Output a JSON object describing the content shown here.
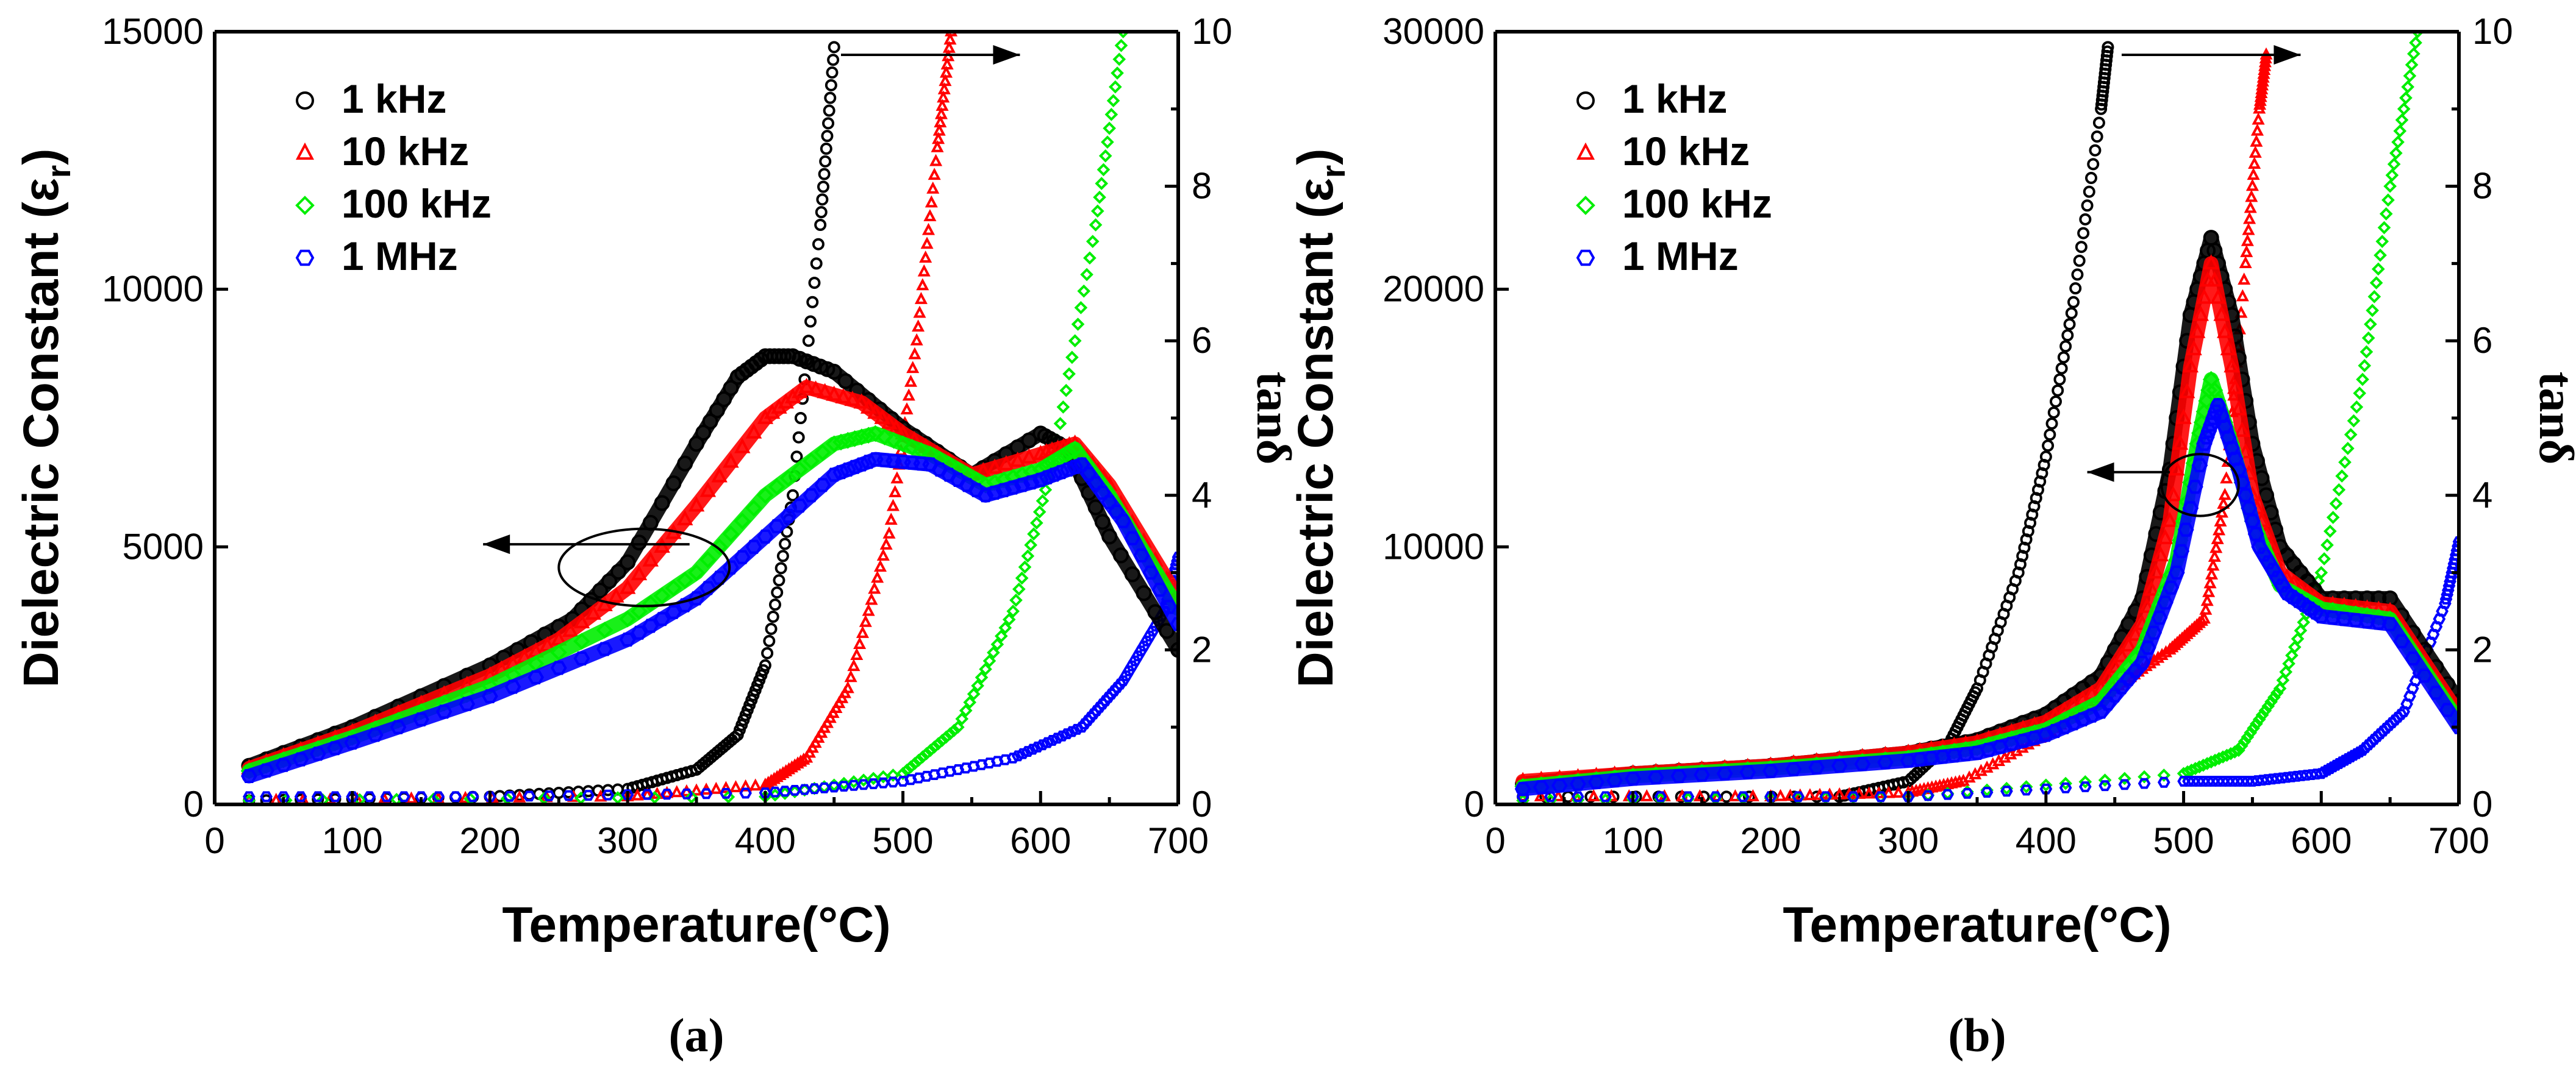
{
  "figure": {
    "x_axis_title": "Temperature(°C)",
    "left_axis_title": "Dielectric Constant (ε",
    "left_axis_sub": "r",
    "left_axis_close": ")",
    "right_axis_title": "tanδ"
  },
  "colors": {
    "1 kHz": "#000000",
    "10 kHz": "#ff0000",
    "100 kHz": "#00ee00",
    "1 MHz": "#0000ff"
  },
  "chart_data": [
    {
      "type": "scatter",
      "panel_label": "(a)",
      "xlim": [
        0,
        700
      ],
      "x_ticks": [
        0,
        100,
        200,
        300,
        400,
        500,
        600,
        700
      ],
      "ylim_left": [
        0,
        15000
      ],
      "y_ticks_left": [
        0,
        5000,
        10000,
        15000
      ],
      "ylim_right": [
        0,
        10
      ],
      "y_ticks_right": [
        0,
        2,
        4,
        6,
        8,
        10
      ],
      "legend": [
        {
          "label": "1 kHz",
          "marker": "circle"
        },
        {
          "label": "10 kHz",
          "marker": "triangle"
        },
        {
          "label": "100 kHz",
          "marker": "diamond"
        },
        {
          "label": "1 MHz",
          "marker": "hexagon"
        }
      ],
      "dielectric_series": [
        {
          "name": "1 kHz",
          "x": [
            25,
            100,
            200,
            260,
            300,
            350,
            380,
            400,
            420,
            450,
            500,
            550,
            600,
            620,
            650,
            700
          ],
          "y": [
            750,
            1500,
            2700,
            3600,
            4700,
            7000,
            8300,
            8700,
            8700,
            8400,
            7300,
            6400,
            7200,
            6900,
            5200,
            3000
          ]
        },
        {
          "name": "10 kHz",
          "x": [
            25,
            100,
            200,
            250,
            300,
            350,
            400,
            430,
            470,
            500,
            550,
            600,
            625,
            650,
            700
          ],
          "y": [
            700,
            1400,
            2500,
            3200,
            4200,
            5800,
            7500,
            8100,
            7800,
            7200,
            6400,
            6800,
            7000,
            6200,
            4000
          ]
        },
        {
          "name": "100 kHz",
          "x": [
            25,
            100,
            200,
            300,
            350,
            400,
            450,
            480,
            520,
            560,
            600,
            625,
            650,
            700
          ],
          "y": [
            650,
            1300,
            2300,
            3600,
            4500,
            6000,
            7000,
            7200,
            6800,
            6200,
            6500,
            6900,
            6000,
            3800
          ]
        },
        {
          "name": "1 MHz",
          "x": [
            25,
            100,
            200,
            300,
            350,
            400,
            450,
            480,
            520,
            560,
            600,
            630,
            660,
            700
          ],
          "y": [
            550,
            1200,
            2100,
            3200,
            4000,
            5200,
            6400,
            6700,
            6600,
            6000,
            6300,
            6600,
            5500,
            3500
          ]
        }
      ],
      "loss_series": [
        {
          "name": "1 kHz",
          "x": [
            25,
            200,
            300,
            350,
            380,
            400,
            420,
            440,
            450
          ],
          "y": [
            0.05,
            0.1,
            0.2,
            0.45,
            0.9,
            1.8,
            4.0,
            7.5,
            9.8
          ]
        },
        {
          "name": "10 kHz",
          "x": [
            25,
            300,
            400,
            430,
            460,
            490,
            510,
            525,
            535
          ],
          "y": [
            0.05,
            0.1,
            0.25,
            0.6,
            1.5,
            3.5,
            6.0,
            8.5,
            10
          ]
        },
        {
          "name": "100 kHz",
          "x": [
            25,
            400,
            500,
            540,
            580,
            610,
            640,
            660
          ],
          "y": [
            0.05,
            0.1,
            0.4,
            1.0,
            2.5,
            4.5,
            7.5,
            10
          ]
        },
        {
          "name": "1 MHz",
          "x": [
            25,
            200,
            400,
            500,
            580,
            630,
            660,
            690,
            700
          ],
          "y": [
            0.1,
            0.1,
            0.15,
            0.3,
            0.6,
            1.0,
            1.6,
            2.5,
            3.2
          ]
        }
      ],
      "annotations": [
        {
          "type": "arrow",
          "axis": "left",
          "direction": "left",
          "from": [
            345,
            5050
          ],
          "to": [
            195,
            5050
          ]
        },
        {
          "type": "ellipse",
          "cx": 312,
          "cy": 4600,
          "rx": 62,
          "ry": 750
        },
        {
          "type": "arrow",
          "axis": "right",
          "direction": "right",
          "from": [
            455,
            9.7
          ],
          "to": [
            585,
            9.7
          ]
        }
      ]
    },
    {
      "type": "scatter",
      "panel_label": "(b)",
      "xlim": [
        0,
        700
      ],
      "x_ticks": [
        0,
        100,
        200,
        300,
        400,
        500,
        600,
        700
      ],
      "ylim_left": [
        0,
        30000
      ],
      "y_ticks_left": [
        0,
        10000,
        20000,
        30000
      ],
      "ylim_right": [
        0,
        10
      ],
      "y_ticks_right": [
        0,
        2,
        4,
        6,
        8,
        10
      ],
      "legend": [
        {
          "label": "1 kHz",
          "marker": "circle"
        },
        {
          "label": "10 kHz",
          "marker": "triangle"
        },
        {
          "label": "100 kHz",
          "marker": "diamond"
        },
        {
          "label": "1 MHz",
          "marker": "hexagon"
        }
      ],
      "dielectric_series": [
        {
          "name": "1 kHz",
          "x": [
            20,
            100,
            200,
            300,
            350,
            400,
            440,
            470,
            490,
            505,
            520,
            535,
            550,
            570,
            600,
            650,
            700
          ],
          "y": [
            800,
            1200,
            1500,
            2000,
            2500,
            3500,
            5000,
            8000,
            13000,
            19000,
            22000,
            19000,
            14000,
            10000,
            8000,
            8000,
            4000
          ]
        },
        {
          "name": "10 kHz",
          "x": [
            20,
            100,
            200,
            300,
            350,
            400,
            440,
            470,
            490,
            505,
            520,
            535,
            550,
            570,
            600,
            650,
            700
          ],
          "y": [
            900,
            1200,
            1500,
            2000,
            2400,
            3200,
            4500,
            7000,
            11000,
            17000,
            21000,
            17000,
            12000,
            9000,
            7800,
            7500,
            3500
          ]
        },
        {
          "name": "100 kHz",
          "x": [
            20,
            100,
            200,
            300,
            350,
            400,
            440,
            470,
            495,
            510,
            520,
            535,
            550,
            570,
            600,
            650,
            700
          ],
          "y": [
            700,
            1100,
            1400,
            1800,
            2200,
            2900,
            4000,
            6000,
            9500,
            14000,
            16500,
            14000,
            11000,
            8500,
            7600,
            7200,
            3200
          ]
        },
        {
          "name": "1 MHz",
          "x": [
            20,
            100,
            200,
            300,
            350,
            400,
            440,
            470,
            495,
            515,
            525,
            540,
            555,
            575,
            600,
            650,
            700
          ],
          "y": [
            600,
            1000,
            1300,
            1700,
            2000,
            2700,
            3600,
            5500,
            9000,
            14000,
            15500,
            13000,
            10000,
            8200,
            7300,
            7000,
            3000
          ]
        }
      ],
      "loss_series": [
        {
          "name": "1 kHz",
          "x": [
            20,
            250,
            300,
            330,
            350,
            380,
            400,
            420,
            440,
            445
          ],
          "y": [
            0.1,
            0.1,
            0.3,
            0.8,
            1.5,
            3.0,
            4.5,
            6.5,
            9.0,
            9.8
          ]
        },
        {
          "name": "10 kHz",
          "x": [
            20,
            200,
            300,
            340,
            400,
            450,
            490,
            515,
            530,
            545,
            555,
            560
          ],
          "y": [
            0.1,
            0.1,
            0.15,
            0.3,
            0.9,
            1.5,
            2.0,
            2.4,
            4.0,
            7.0,
            9.0,
            9.7
          ]
        },
        {
          "name": "100 kHz",
          "x": [
            20,
            300,
            500,
            540,
            570,
            600,
            630,
            650,
            670
          ],
          "y": [
            0.05,
            0.1,
            0.4,
            0.7,
            1.5,
            3.0,
            5.5,
            8.0,
            10
          ]
        },
        {
          "name": "1 MHz",
          "x": [
            20,
            300,
            500,
            550,
            600,
            630,
            660,
            690,
            700
          ],
          "y": [
            0.1,
            0.1,
            0.3,
            0.3,
            0.4,
            0.7,
            1.2,
            2.6,
            3.4
          ]
        }
      ],
      "annotations": [
        {
          "type": "arrow",
          "axis": "left",
          "direction": "left",
          "from": [
            490,
            12900
          ],
          "to": [
            430,
            12900
          ]
        },
        {
          "type": "ellipse",
          "cx": 512,
          "cy": 12400,
          "rx": 28,
          "ry": 1200
        },
        {
          "type": "arrow",
          "axis": "right",
          "direction": "right",
          "from": [
            455,
            9.7
          ],
          "to": [
            585,
            9.7
          ]
        }
      ]
    }
  ]
}
